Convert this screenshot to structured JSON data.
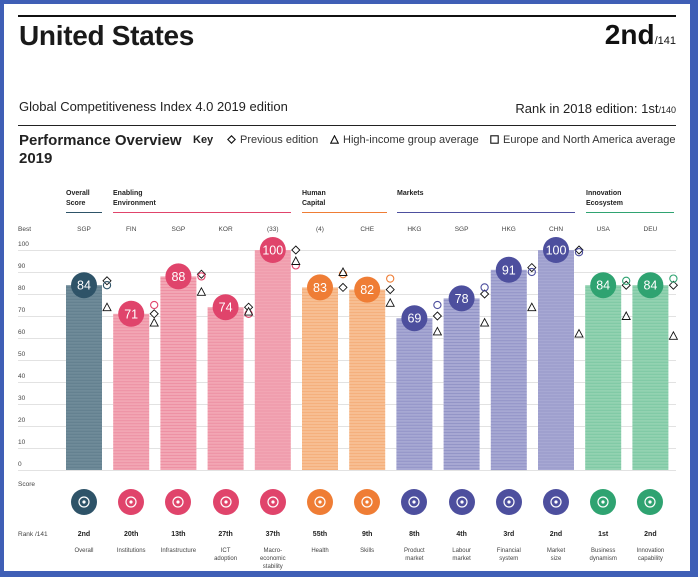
{
  "header": {
    "country": "United States",
    "rank": "2nd",
    "rank_total": "/141",
    "edition": "Global Competitiveness Index 4.0 2019 edition",
    "prev_rank_label": "Rank in 2018 edition: 1st",
    "prev_rank_total": "/140"
  },
  "section": {
    "title_line1": "Performance Overview",
    "title_line2": "2019",
    "key_label": "Key",
    "key_items": [
      "Previous edition",
      "High-income group average",
      "Europe and North America average"
    ]
  },
  "axis": {
    "best_label": "Best",
    "score_label": "Score",
    "rank_label": "Rank /141",
    "ticks": [
      "100",
      "90",
      "80",
      "70",
      "60",
      "50",
      "40",
      "30",
      "20",
      "10",
      "0"
    ]
  },
  "categories": [
    {
      "line1": "Overall",
      "line2": "Score",
      "color": "#2e5368"
    },
    {
      "line1": "Enabling",
      "line2": "Environment",
      "color": "#e0446b"
    },
    {
      "line1": "Human",
      "line2": "Capital",
      "color": "#ef7d35"
    },
    {
      "line1": "Markets",
      "line2": "",
      "color": "#4d4f9e"
    },
    {
      "line1": "Innovation",
      "line2": "Ecosystem",
      "color": "#2fa371"
    }
  ],
  "chart_data": {
    "type": "bar",
    "ylim": [
      0,
      100
    ],
    "series_markers": [
      "Previous edition",
      "High-income group average",
      "Europe and North America average"
    ],
    "pillars": [
      {
        "name": "Overall",
        "best": "SGP",
        "score": 84,
        "prev": 86,
        "high_income": 74,
        "europe_na": 84,
        "rank": "2nd",
        "group": 0
      },
      {
        "name": "Institutions",
        "best": "FIN",
        "score": 71,
        "prev": 71,
        "high_income": 67,
        "europe_na": 75,
        "rank": "20th",
        "group": 1
      },
      {
        "name": "Infrastructure",
        "best": "SGP",
        "score": 88,
        "prev": 89,
        "high_income": 81,
        "europe_na": 88,
        "rank": "13th",
        "group": 1
      },
      {
        "name": "ICT adoption",
        "best": "KOR",
        "score": 74,
        "prev": 74,
        "high_income": 72,
        "europe_na": 71,
        "rank": "27th",
        "group": 1
      },
      {
        "name": "Macro-economic stability",
        "best": "(33)",
        "score": 100,
        "prev": 100,
        "high_income": 95,
        "europe_na": 93,
        "rank": "37th",
        "group": 1
      },
      {
        "name": "Health",
        "best": "(4)",
        "score": 83,
        "prev": 83,
        "high_income": 90,
        "europe_na": 89,
        "rank": "55th",
        "group": 2
      },
      {
        "name": "Skills",
        "best": "CHE",
        "score": 82,
        "prev": 82,
        "high_income": 76,
        "europe_na": 87,
        "rank": "9th",
        "group": 2
      },
      {
        "name": "Product market",
        "best": "HKG",
        "score": 69,
        "prev": 70,
        "high_income": 63,
        "europe_na": 75,
        "rank": "8th",
        "group": 3
      },
      {
        "name": "Labour market",
        "best": "SGP",
        "score": 78,
        "prev": 80,
        "high_income": 67,
        "europe_na": 83,
        "rank": "4th",
        "group": 3
      },
      {
        "name": "Financial system",
        "best": "HKG",
        "score": 91,
        "prev": 92,
        "high_income": 74,
        "europe_na": 90,
        "rank": "3rd",
        "group": 3
      },
      {
        "name": "Market size",
        "best": "CHN",
        "score": 100,
        "prev": 100,
        "high_income": 62,
        "europe_na": 99,
        "rank": "2nd",
        "group": 3
      },
      {
        "name": "Business dynamism",
        "best": "USA",
        "score": 84,
        "prev": 84,
        "high_income": 70,
        "europe_na": 86,
        "rank": "1st",
        "group": 4
      },
      {
        "name": "Innovation capability",
        "best": "DEU",
        "score": 84,
        "prev": 84,
        "high_income": 61,
        "europe_na": 87,
        "rank": "2nd",
        "group": 4
      }
    ]
  },
  "pillar_labels": [
    {
      "line1": "Overall",
      "line2": ""
    },
    {
      "line1": "Institutions",
      "line2": ""
    },
    {
      "line1": "Infrastructure",
      "line2": ""
    },
    {
      "line1": "ICT",
      "line2": "adoption"
    },
    {
      "line1": "Macro-",
      "line2": "economic",
      "line3": "stability"
    },
    {
      "line1": "Health",
      "line2": ""
    },
    {
      "line1": "Skills",
      "line2": ""
    },
    {
      "line1": "Product",
      "line2": "market"
    },
    {
      "line1": "Labour",
      "line2": "market"
    },
    {
      "line1": "Financial",
      "line2": "system"
    },
    {
      "line1": "Market",
      "line2": "size"
    },
    {
      "line1": "Business",
      "line2": "dynamism"
    },
    {
      "line1": "Innovation",
      "line2": "capability"
    }
  ],
  "icons": [
    "award-icon",
    "institution-icon",
    "train-icon",
    "chip-icon",
    "growth-arrow-icon",
    "heart-pulse-icon",
    "graduate-icon",
    "tag-icon",
    "people-icon",
    "credit-card-icon",
    "expand-icon",
    "building-icon",
    "lightbulb-icon"
  ]
}
